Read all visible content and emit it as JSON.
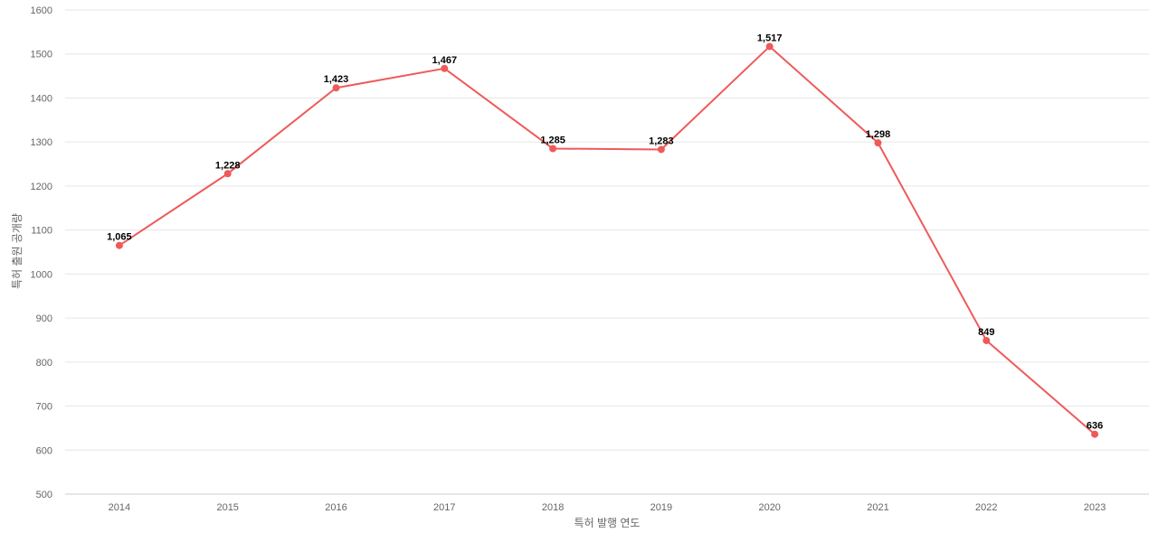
{
  "chart_data": {
    "type": "line",
    "title": "",
    "xlabel": "특허 발행 연도",
    "ylabel": "특허 출원 공개량",
    "categories": [
      "2014",
      "2015",
      "2016",
      "2017",
      "2018",
      "2019",
      "2020",
      "2021",
      "2022",
      "2023"
    ],
    "series": [
      {
        "values": [
          1065,
          1228,
          1423,
          1467,
          1285,
          1283,
          1517,
          1298,
          849,
          636
        ],
        "labels": [
          "1,065",
          "1,228",
          "1,423",
          "1,467",
          "1,285",
          "1,283",
          "1,517",
          "1,298",
          "849",
          "636"
        ],
        "color": "#ee5a5a"
      }
    ],
    "ylim": [
      500,
      1600
    ],
    "yticks": [
      "500",
      "600",
      "700",
      "800",
      "900",
      "1000",
      "1100",
      "1200",
      "1300",
      "1400",
      "1500",
      "1600"
    ],
    "grid": true,
    "legend": "none"
  }
}
